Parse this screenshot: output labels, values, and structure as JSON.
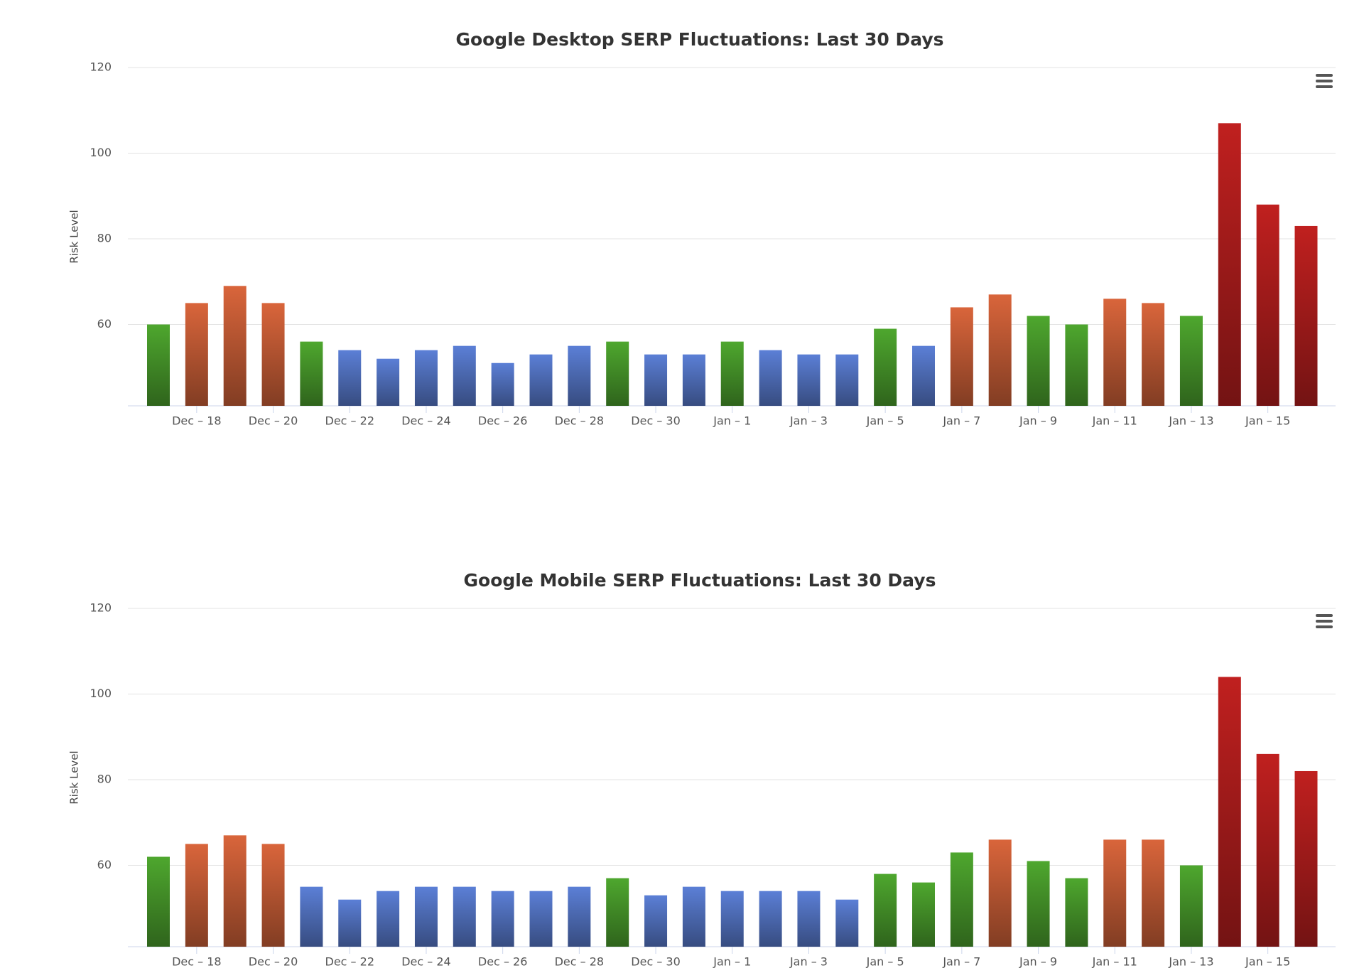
{
  "chart_data": [
    {
      "type": "bar",
      "title": "Google Desktop SERP Fluctuations: Last 30 Days",
      "y_label": "Risk Level",
      "categories": [
        null,
        "Dec – 18",
        null,
        "Dec – 20",
        null,
        "Dec – 22",
        null,
        "Dec – 24",
        null,
        "Dec – 26",
        null,
        "Dec – 28",
        null,
        "Dec – 30",
        null,
        "Jan – 1",
        null,
        "Jan – 3",
        null,
        "Jan – 5",
        null,
        "Jan – 7",
        null,
        "Jan – 9",
        null,
        "Jan – 11",
        null,
        "Jan – 13",
        null,
        "Jan – 15",
        null
      ],
      "values": [
        60,
        65,
        69,
        65,
        56,
        54,
        52,
        54,
        55,
        51,
        53,
        55,
        56,
        53,
        53,
        56,
        54,
        53,
        53,
        59,
        55,
        64,
        67,
        62,
        60,
        66,
        65,
        62,
        107,
        88,
        83
      ],
      "colors": [
        "#4ea72e",
        "#d9653b",
        "#d9653b",
        "#d9653b",
        "#4ea72e",
        "#5b7fd6",
        "#5b7fd6",
        "#5b7fd6",
        "#5b7fd6",
        "#5b7fd6",
        "#5b7fd6",
        "#5b7fd6",
        "#4ea72e",
        "#5b7fd6",
        "#5b7fd6",
        "#4ea72e",
        "#5b7fd6",
        "#5b7fd6",
        "#5b7fd6",
        "#4ea72e",
        "#5b7fd6",
        "#d9653b",
        "#d9653b",
        "#4ea72e",
        "#4ea72e",
        "#d9653b",
        "#d9653b",
        "#4ea72e",
        "#c0201f",
        "#c0201f",
        "#c0201f"
      ],
      "ylim": [
        41,
        120
      ],
      "yticks": [
        60,
        80,
        100,
        120
      ],
      "grid": true
    },
    {
      "type": "bar",
      "title": "Google Mobile SERP Fluctuations: Last 30 Days",
      "y_label": "Risk Level",
      "categories": [
        null,
        "Dec – 18",
        null,
        "Dec – 20",
        null,
        "Dec – 22",
        null,
        "Dec – 24",
        null,
        "Dec – 26",
        null,
        "Dec – 28",
        null,
        "Dec – 30",
        null,
        "Jan – 1",
        null,
        "Jan – 3",
        null,
        "Jan – 5",
        null,
        "Jan – 7",
        null,
        "Jan – 9",
        null,
        "Jan – 11",
        null,
        "Jan – 13",
        null,
        "Jan – 15",
        null
      ],
      "values": [
        62,
        65,
        67,
        65,
        55,
        52,
        54,
        55,
        55,
        54,
        54,
        55,
        57,
        53,
        55,
        54,
        54,
        54,
        52,
        58,
        56,
        63,
        66,
        61,
        57,
        66,
        66,
        60,
        104,
        86,
        82
      ],
      "colors": [
        "#4ea72e",
        "#d9653b",
        "#d9653b",
        "#d9653b",
        "#5b7fd6",
        "#5b7fd6",
        "#5b7fd6",
        "#5b7fd6",
        "#5b7fd6",
        "#5b7fd6",
        "#5b7fd6",
        "#5b7fd6",
        "#4ea72e",
        "#5b7fd6",
        "#5b7fd6",
        "#5b7fd6",
        "#5b7fd6",
        "#5b7fd6",
        "#5b7fd6",
        "#4ea72e",
        "#4ea72e",
        "#4ea72e",
        "#d9653b",
        "#4ea72e",
        "#4ea72e",
        "#d9653b",
        "#d9653b",
        "#4ea72e",
        "#c0201f",
        "#c0201f",
        "#c0201f"
      ],
      "ylim": [
        41,
        120
      ],
      "yticks": [
        60,
        80,
        100,
        120
      ],
      "grid": true
    }
  ]
}
